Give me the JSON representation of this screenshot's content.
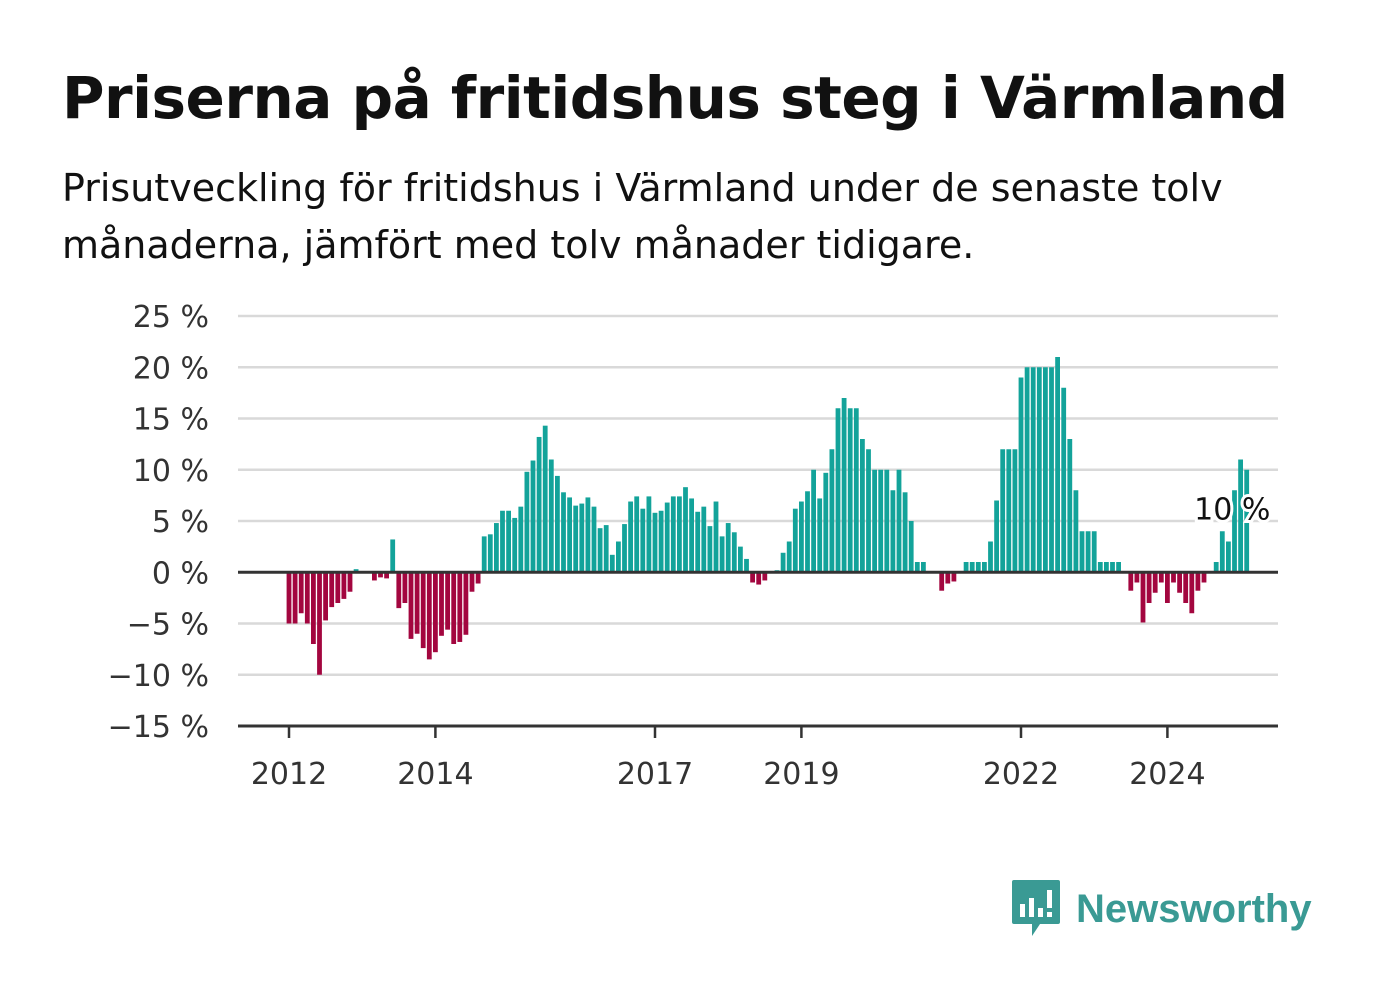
{
  "title": "Priserna på fritidshus steg i Värmland",
  "subtitle": "Prisutveckling för fritidshus i Värmland under de senaste tolv månaderna, jämfört med tolv månader tidigare.",
  "brand": {
    "name": "Newsworthy",
    "icon": "newsworthy-logo-icon",
    "color": "#3a9a94"
  },
  "colors": {
    "positive": "#13a39a",
    "negative": "#a3063f",
    "grid": "#d9d9d9",
    "axis": "#333333"
  },
  "chart_data": {
    "type": "bar",
    "ylim": [
      -15,
      25
    ],
    "y_ticks": [
      25,
      20,
      15,
      10,
      5,
      0,
      -5,
      -10,
      -15
    ],
    "y_tick_labels": [
      "25 %",
      "20 %",
      "15 %",
      "10 %",
      "5 %",
      "0 %",
      "−5 %",
      "−10 %",
      "−15 %"
    ],
    "x_ticks": [
      {
        "label": "2012",
        "index": 0
      },
      {
        "label": "2014",
        "index": 24
      },
      {
        "label": "2017",
        "index": 60
      },
      {
        "label": "2019",
        "index": 84
      },
      {
        "label": "2022",
        "index": 120
      },
      {
        "label": "2024",
        "index": 144
      }
    ],
    "grid": true,
    "annotation": {
      "text": "10 %",
      "index": 154
    },
    "values": [
      -5,
      -5,
      -4,
      -5,
      -7,
      -10,
      -4.7,
      -3.4,
      -3,
      -2.6,
      -1.9,
      0.3,
      0,
      0,
      -0.8,
      -0.5,
      -0.6,
      3.2,
      -3.5,
      -3,
      -6.5,
      -6,
      -7.4,
      -8.5,
      -7.8,
      -6.2,
      -5.6,
      -7,
      -6.8,
      -6.1,
      -1.9,
      -1.1,
      3.5,
      3.7,
      4.8,
      6,
      6,
      5.3,
      6.4,
      9.8,
      10.9,
      13.2,
      14.3,
      11,
      9.4,
      7.8,
      7.3,
      6.5,
      6.7,
      7.3,
      6.4,
      4.3,
      4.6,
      1.7,
      3,
      4.7,
      6.9,
      7.4,
      6.2,
      7.4,
      5.8,
      6,
      6.8,
      7.4,
      7.4,
      8.3,
      7.2,
      5.9,
      6.4,
      4.5,
      6.9,
      3.5,
      4.8,
      3.9,
      2.5,
      1.3,
      -1,
      -1.2,
      -0.8,
      0,
      0.2,
      1.9,
      3,
      6.2,
      6.9,
      7.9,
      10,
      7.2,
      9.7,
      12,
      16,
      17,
      16,
      16,
      13,
      12,
      10,
      10,
      10,
      8,
      10,
      7.8,
      5,
      1,
      1,
      0,
      0,
      -1.8,
      -1.1,
      -0.9,
      0,
      1,
      1,
      1,
      1,
      3,
      7,
      12,
      12,
      12,
      19,
      20,
      20,
      20,
      20,
      20,
      21,
      18,
      13,
      8,
      4,
      4,
      4,
      1,
      1,
      1,
      1,
      0,
      -1.8,
      -1,
      -4.9,
      -3,
      -2,
      -1,
      -3,
      -1,
      -2,
      -3,
      -4,
      -1.8,
      -1,
      0,
      1,
      4,
      3,
      8,
      11,
      10
    ]
  }
}
